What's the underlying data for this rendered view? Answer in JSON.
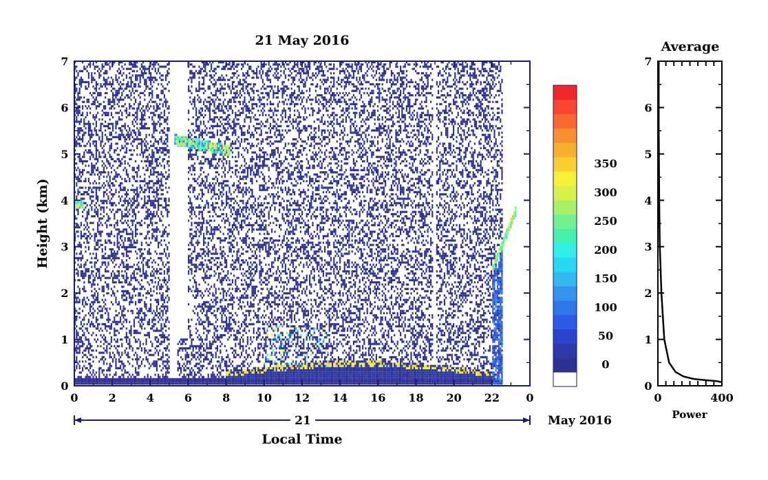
{
  "chart_data": [
    {
      "type": "heatmap",
      "title": "21 May 2016",
      "xlabel": "Local Time",
      "ylabel": "Height (km)",
      "xlim": [
        0,
        24
      ],
      "ylim": [
        0,
        7
      ],
      "x_ticks": [
        "0",
        "2",
        "4",
        "6",
        "8",
        "10",
        "12",
        "14",
        "16",
        "18",
        "20",
        "22",
        "0"
      ],
      "y_ticks": [
        "0",
        "1",
        "2",
        "3",
        "4",
        "5",
        "6",
        "7"
      ],
      "date_day": "21",
      "date_month_year": "May 2016",
      "colorbar": {
        "range": [
          0,
          375
        ],
        "step": 25,
        "labels": [
          "0",
          "50",
          "100",
          "150",
          "200",
          "250",
          "300",
          "350"
        ],
        "colors": [
          "#ffffff",
          "#2e3192",
          "#2b3aa8",
          "#2a45cc",
          "#2d5ae6",
          "#2f78e8",
          "#3494ec",
          "#33b8ee",
          "#28d8f0",
          "#30f0e8",
          "#48f0b0",
          "#70f090",
          "#a8f068",
          "#d8f048",
          "#f8f038",
          "#f8d030",
          "#f8b030",
          "#f89030",
          "#f86830",
          "#f84830",
          "#f02828"
        ]
      },
      "features": [
        {
          "name": "surface layer",
          "x": [
            0,
            22.5
          ],
          "height_km": 0.15
        },
        {
          "name": "boundary layer top",
          "x": [
            8,
            22
          ],
          "height_km": [
            0.2,
            0.5
          ]
        },
        {
          "name": "convective plumes",
          "x": [
            10,
            13.5
          ],
          "height_km": [
            0.5,
            1.3
          ]
        },
        {
          "name": "elevated layer",
          "x": [
            5.3,
            8.2
          ],
          "height_km": [
            5.0,
            5.5
          ]
        },
        {
          "name": "rising layer",
          "x": [
            22,
            23.3
          ],
          "height_km": [
            2.5,
            3.8
          ]
        },
        {
          "name": "early layer",
          "x": [
            0,
            0.5
          ],
          "height_km": 3.9
        }
      ]
    },
    {
      "type": "line",
      "title": "Average",
      "xlabel": "Power",
      "ylabel": "",
      "xlim": [
        0,
        400
      ],
      "ylim": [
        0,
        7
      ],
      "x_ticks": [
        "0",
        "400"
      ],
      "y_ticks": [
        "0",
        "1",
        "2",
        "3",
        "4",
        "5",
        "6",
        "7"
      ],
      "series": [
        {
          "x": [
            5,
            5,
            6,
            8,
            12,
            22,
            40,
            70,
            110,
            160,
            220,
            300,
            370,
            395
          ],
          "y": [
            7.0,
            5.5,
            5.2,
            4.0,
            3.0,
            2.0,
            1.0,
            0.5,
            0.3,
            0.2,
            0.15,
            0.12,
            0.1,
            0.08
          ]
        }
      ]
    }
  ]
}
